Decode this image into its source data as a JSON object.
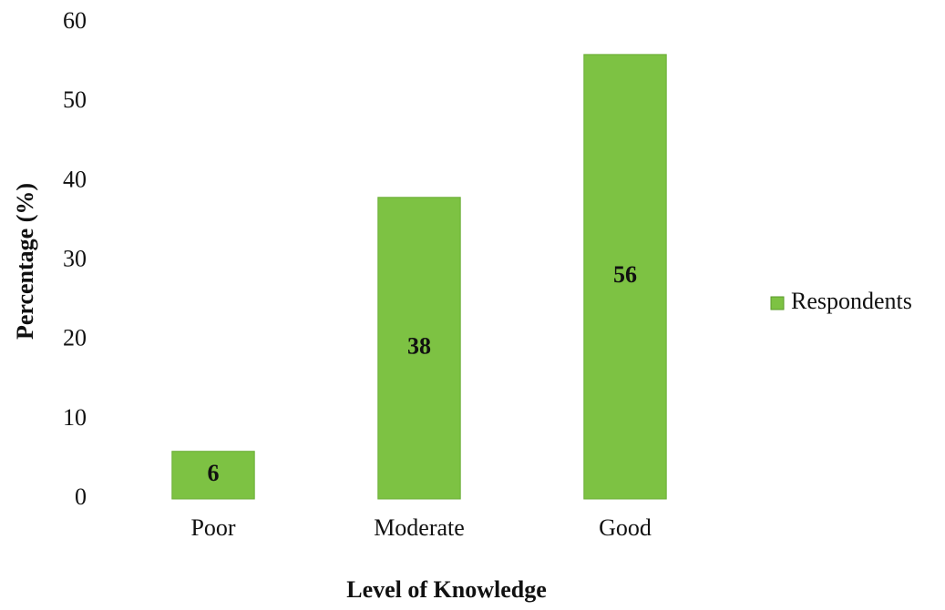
{
  "chart_data": {
    "type": "bar",
    "categories": [
      "Poor",
      "Moderate",
      "Good"
    ],
    "values": [
      6,
      38,
      56
    ],
    "series_name": "Respondents",
    "color": "#7dc243",
    "xlabel": "Level of Knowledge",
    "ylabel": "Percentage (%)",
    "ylim": [
      0,
      60
    ],
    "yticks": [
      0,
      10,
      20,
      30,
      40,
      50,
      60
    ],
    "grid": false,
    "legend": "right"
  }
}
